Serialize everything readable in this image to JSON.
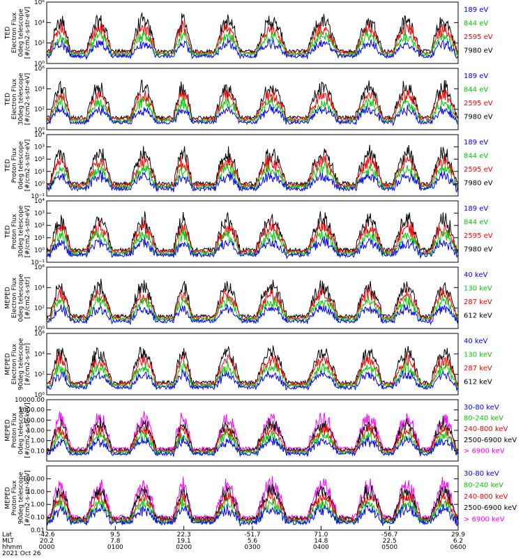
{
  "chart_data": [
    {
      "type": "line",
      "ylabel": [
        "TED",
        "Electron Flux",
        "0deg telescope",
        "[#/cm2-s-str-eV]"
      ],
      "yscale": "log",
      "ylim": [
        1,
        1000000
      ],
      "ticks": [
        {
          "v": 1,
          "label": "10⁰"
        },
        {
          "v": 100,
          "label": "10²"
        },
        {
          "v": 10000,
          "label": "10⁴"
        },
        {
          "v": 1000000,
          "label": "10⁶"
        }
      ],
      "series": [
        {
          "name": "7980 eV",
          "color": "#000000"
        },
        {
          "name": "2595 eV",
          "color": "#ff0000"
        },
        {
          "name": "844 eV",
          "color": "#00cc00"
        },
        {
          "name": "189 eV",
          "color": "#0000ff"
        }
      ]
    },
    {
      "type": "line",
      "ylabel": [
        "TED",
        "Electron Flux",
        "30deg telescope",
        "[#/cm2-s-str-eV]"
      ],
      "yscale": "log",
      "ylim": [
        1,
        1000000
      ],
      "ticks": [
        {
          "v": 1,
          "label": "10⁰"
        },
        {
          "v": 100,
          "label": "10²"
        },
        {
          "v": 10000,
          "label": "10⁴"
        },
        {
          "v": 1000000,
          "label": "10⁶"
        }
      ],
      "series": [
        {
          "name": "7980 eV",
          "color": "#000000"
        },
        {
          "name": "2595 eV",
          "color": "#ff0000"
        },
        {
          "name": "844 eV",
          "color": "#00cc00"
        },
        {
          "name": "189 eV",
          "color": "#0000ff"
        }
      ]
    },
    {
      "type": "line",
      "ylabel": [
        "TED",
        "Proton Flux",
        "0deg telescope",
        "[#/cm2-s-str-eV]"
      ],
      "yscale": "log",
      "ylim": [
        0.1,
        10000
      ],
      "ticks": [
        {
          "v": 0.1,
          "label": "10⁻¹"
        },
        {
          "v": 1,
          "label": "10⁰"
        },
        {
          "v": 10,
          "label": "10¹"
        },
        {
          "v": 100,
          "label": "10²"
        },
        {
          "v": 1000,
          "label": "10³"
        },
        {
          "v": 10000,
          "label": "10⁴"
        }
      ],
      "series": [
        {
          "name": "7980 eV",
          "color": "#000000"
        },
        {
          "name": "2595 eV",
          "color": "#ff0000"
        },
        {
          "name": "844 eV",
          "color": "#00cc00"
        },
        {
          "name": "189 eV",
          "color": "#0000ff"
        }
      ]
    },
    {
      "type": "line",
      "ylabel": [
        "TED",
        "Proton Flux",
        "30deg telescope",
        "[#/cm2-s-str-eV]"
      ],
      "yscale": "log",
      "ylim": [
        0.1,
        10000
      ],
      "ticks": [
        {
          "v": 0.1,
          "label": "10⁻¹"
        },
        {
          "v": 1,
          "label": "10⁰"
        },
        {
          "v": 10,
          "label": "10¹"
        },
        {
          "v": 100,
          "label": "10²"
        },
        {
          "v": 1000,
          "label": "10³"
        },
        {
          "v": 10000,
          "label": "10⁴"
        }
      ],
      "series": [
        {
          "name": "7980 eV",
          "color": "#000000"
        },
        {
          "name": "2595 eV",
          "color": "#ff0000"
        },
        {
          "name": "844 eV",
          "color": "#00cc00"
        },
        {
          "name": "189 eV",
          "color": "#0000ff"
        }
      ]
    },
    {
      "type": "line",
      "ylabel": [
        "MEPED",
        "Electron Flux",
        "0deg telescope",
        "[#/cm2-s-str]"
      ],
      "yscale": "log",
      "ylim": [
        1,
        1000000
      ],
      "ticks": [
        {
          "v": 1,
          "label": "10⁰"
        },
        {
          "v": 100,
          "label": "10²"
        },
        {
          "v": 10000,
          "label": "10⁴"
        },
        {
          "v": 1000000,
          "label": "10⁶"
        }
      ],
      "series": [
        {
          "name": "612 keV",
          "color": "#000000"
        },
        {
          "name": "287 keV",
          "color": "#ff0000"
        },
        {
          "name": "130 keV",
          "color": "#00cc00"
        },
        {
          "name": "40 keV",
          "color": "#0000ff"
        }
      ]
    },
    {
      "type": "line",
      "ylabel": [
        "MEPED",
        "Electron Flux",
        "90deg telescope",
        "[#/cm2-s-str]"
      ],
      "yscale": "log",
      "ylim": [
        1,
        1000000
      ],
      "ticks": [
        {
          "v": 1,
          "label": "10⁰"
        },
        {
          "v": 100,
          "label": "10²"
        },
        {
          "v": 10000,
          "label": "10⁴"
        },
        {
          "v": 1000000,
          "label": "10⁶"
        }
      ],
      "series": [
        {
          "name": "612 keV",
          "color": "#000000"
        },
        {
          "name": "287 keV",
          "color": "#ff0000"
        },
        {
          "name": "130 keV",
          "color": "#00cc00"
        },
        {
          "name": "40 keV",
          "color": "#0000ff"
        }
      ]
    },
    {
      "type": "line",
      "ylabel": [
        "MEPED",
        "Proton Flux",
        "0deg telescope",
        "[#/cm2-s-str-keV]"
      ],
      "yscale": "log",
      "ylim": [
        0.01,
        10000
      ],
      "ticks": [
        {
          "v": 0.01,
          "label": ""
        },
        {
          "v": 0.1,
          "label": "0.10"
        },
        {
          "v": 1,
          "label": "1.00"
        },
        {
          "v": 10,
          "label": "10.00"
        },
        {
          "v": 100,
          "label": "100.00"
        },
        {
          "v": 1000,
          "label": "1000.00"
        },
        {
          "v": 10000,
          "label": "10000.00"
        }
      ],
      "series": [
        {
          "name": "> 6900 keV",
          "color": "#ff00ff"
        },
        {
          "name": "2500-6900 keV",
          "color": "#000000"
        },
        {
          "name": "240-800 keV",
          "color": "#ff0000"
        },
        {
          "name": "80-240 keV",
          "color": "#00cc00"
        },
        {
          "name": "30-80 keV",
          "color": "#0000ff"
        }
      ]
    },
    {
      "type": "line",
      "ylabel": [
        "MEPED",
        "Proton Flux",
        "90deg telescope",
        "[#/cm2-s-str-keV]"
      ],
      "yscale": "log",
      "ylim": [
        0.01,
        1000
      ],
      "ticks": [
        {
          "v": 0.01,
          "label": "0.01"
        },
        {
          "v": 0.1,
          "label": "0.10"
        },
        {
          "v": 1,
          "label": "1.00"
        },
        {
          "v": 10,
          "label": "10.00"
        },
        {
          "v": 100,
          "label": "100.00"
        }
      ],
      "series": [
        {
          "name": "> 6900 keV",
          "color": "#ff00ff"
        },
        {
          "name": "2500-6900 keV",
          "color": "#000000"
        },
        {
          "name": "240-800 keV",
          "color": "#ff0000"
        },
        {
          "name": "80-240 keV",
          "color": "#00cc00"
        },
        {
          "name": "30-80 keV",
          "color": "#0000ff"
        }
      ]
    }
  ],
  "x_axis": {
    "row_labels": [
      "Lat",
      "MLT",
      "hhmm"
    ],
    "columns": [
      {
        "lat": "-42.6",
        "mlt": "20.2",
        "hhmm": "0000"
      },
      {
        "lat": "9.5",
        "mlt": "7.8",
        "hhmm": "0100"
      },
      {
        "lat": "22.3",
        "mlt": "19.1",
        "hhmm": "0200"
      },
      {
        "lat": "-51.7",
        "mlt": "5.6",
        "hhmm": "0300"
      },
      {
        "lat": "71.0",
        "mlt": "14.8",
        "hhmm": "0400"
      },
      {
        "lat": "-56.7",
        "mlt": "22.5",
        "hhmm": "0500"
      },
      {
        "lat": "29.9",
        "mlt": "6.2",
        "hhmm": "0600"
      }
    ],
    "date": "2021 Oct 26"
  }
}
